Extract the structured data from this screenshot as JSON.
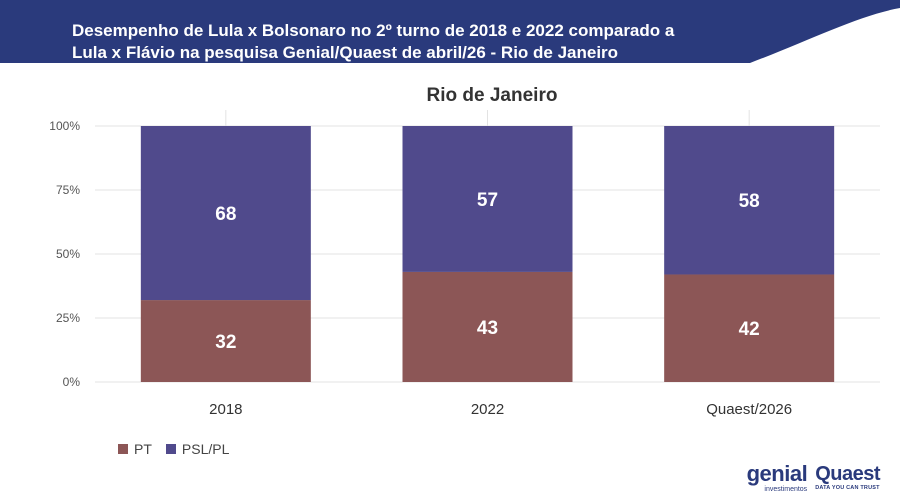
{
  "header": {
    "title_line1": "Desempenho de Lula x Bolsonaro no 2º turno de 2018 e 2022 comparado a",
    "title_line2": "Lula x Flávio na pesquisa Genial/Quaest de abril/26 - Rio de Janeiro"
  },
  "colors": {
    "header_bg": "#2a3a7c",
    "pt": "#8c5656",
    "psl": "#504a8c"
  },
  "chart_data": {
    "type": "bar",
    "stacked": true,
    "title": "Rio de Janeiro",
    "categories": [
      "2018",
      "2022",
      "Quaest/2026"
    ],
    "series": [
      {
        "name": "PT",
        "values": [
          32,
          43,
          42
        ]
      },
      {
        "name": "PSL/PL",
        "values": [
          68,
          57,
          58
        ]
      }
    ],
    "ylim": [
      0,
      100
    ],
    "yticks": [
      "0%",
      "25%",
      "50%",
      "75%",
      "100%"
    ],
    "grid": true,
    "legend_position": "bottom-left"
  },
  "legend": {
    "pt": "PT",
    "psl": "PSL/PL"
  },
  "logos": {
    "genial": "genial",
    "genial_sub": "investimentos",
    "quaest": "Quaest",
    "quaest_sub": "DATA YOU CAN TRUST"
  }
}
